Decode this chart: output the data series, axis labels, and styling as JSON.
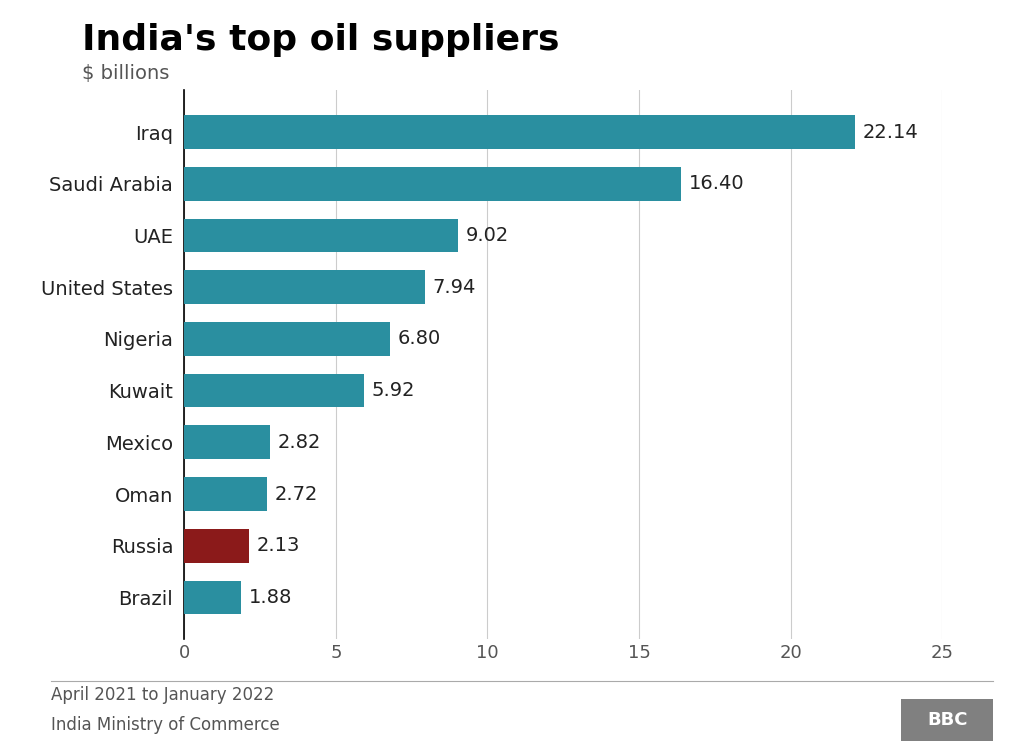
{
  "title": "India's top oil suppliers",
  "subtitle": "$ billions",
  "source_date": "April 2021 to January 2022",
  "source": "India Ministry of Commerce",
  "categories": [
    "Iraq",
    "Saudi Arabia",
    "UAE",
    "United States",
    "Nigeria",
    "Kuwait",
    "Mexico",
    "Oman",
    "Russia",
    "Brazil"
  ],
  "values": [
    22.14,
    16.4,
    9.02,
    7.94,
    6.8,
    5.92,
    2.82,
    2.72,
    2.13,
    1.88
  ],
  "bar_colors": [
    "#2a8fa0",
    "#2a8fa0",
    "#2a8fa0",
    "#2a8fa0",
    "#2a8fa0",
    "#2a8fa0",
    "#2a8fa0",
    "#2a8fa0",
    "#8b1a1a",
    "#2a8fa0"
  ],
  "xlim": [
    0,
    25
  ],
  "xticks": [
    0,
    5,
    10,
    15,
    20,
    25
  ],
  "background_color": "#ffffff",
  "title_fontsize": 26,
  "subtitle_fontsize": 14,
  "label_fontsize": 14,
  "value_fontsize": 14,
  "tick_fontsize": 13,
  "footer_fontsize": 12,
  "title_color": "#000000",
  "subtitle_color": "#555555",
  "label_color": "#222222",
  "value_color": "#222222",
  "footer_color": "#555555",
  "grid_color": "#cccccc",
  "bbc_box_color": "#808080"
}
